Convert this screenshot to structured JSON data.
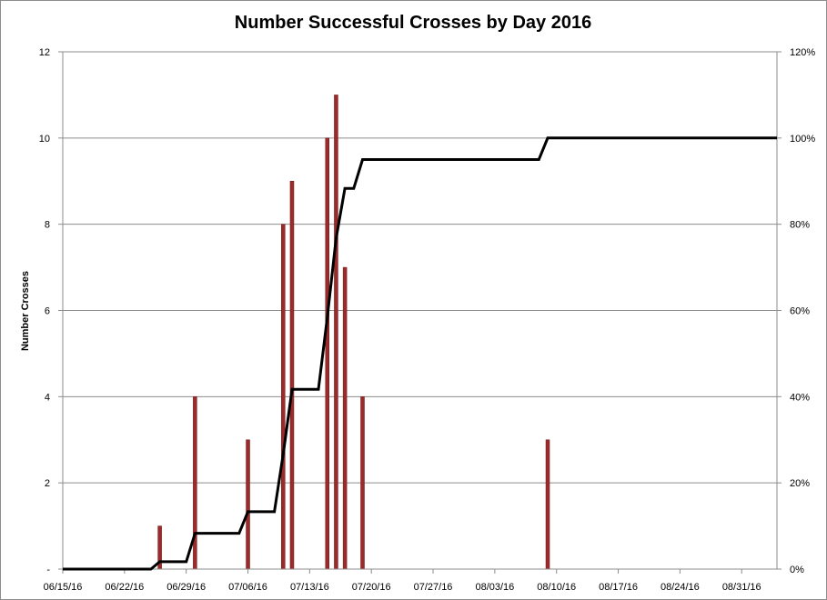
{
  "chart_data": {
    "type": "bar",
    "title": "Number Successful Crosses by Day 2016",
    "xlabel": "",
    "ylabel": "Number Crosses",
    "y2label": "",
    "ylim": [
      0,
      12
    ],
    "y2lim": [
      0,
      1.2
    ],
    "xlim": [
      "2016-06-15",
      "2016-09-04"
    ],
    "grid": true,
    "legend": "none",
    "y_ticks": [
      "-",
      "2",
      "4",
      "6",
      "8",
      "10",
      "12"
    ],
    "y_tick_values": [
      0,
      2,
      4,
      6,
      8,
      10,
      12
    ],
    "y2_ticks": [
      "0%",
      "20%",
      "40%",
      "60%",
      "80%",
      "100%",
      "120%"
    ],
    "y2_tick_values": [
      0,
      0.2,
      0.4,
      0.6,
      0.8,
      1.0,
      1.2
    ],
    "x_ticks": [
      "06/15/16",
      "06/22/16",
      "06/29/16",
      "07/06/16",
      "07/13/16",
      "07/20/16",
      "07/27/16",
      "08/03/16",
      "08/10/16",
      "08/17/16",
      "08/24/16",
      "08/31/16"
    ],
    "x_tick_values": [
      "2016-06-15",
      "2016-06-22",
      "2016-06-29",
      "2016-07-06",
      "2016-07-13",
      "2016-07-20",
      "2016-07-27",
      "2016-08-03",
      "2016-08-10",
      "2016-08-17",
      "2016-08-24",
      "2016-08-31"
    ],
    "series": [
      {
        "type": "bar",
        "axis": "left",
        "color": "#9b2a2a",
        "x": [
          "2016-06-26",
          "2016-06-30",
          "2016-07-06",
          "2016-07-10",
          "2016-07-11",
          "2016-07-15",
          "2016-07-16",
          "2016-07-17",
          "2016-07-19",
          "2016-08-09"
        ],
        "values": [
          1,
          4,
          3,
          8,
          9,
          10,
          11,
          7,
          4,
          3
        ]
      },
      {
        "type": "line",
        "axis": "right",
        "color": "#000000",
        "x": [
          "2016-06-15",
          "2016-06-25",
          "2016-06-26",
          "2016-06-29",
          "2016-06-30",
          "2016-07-05",
          "2016-07-06",
          "2016-07-09",
          "2016-07-10",
          "2016-07-11",
          "2016-07-14",
          "2016-07-15",
          "2016-07-16",
          "2016-07-17",
          "2016-07-18",
          "2016-07-19",
          "2016-08-08",
          "2016-08-09",
          "2016-09-04"
        ],
        "values": [
          0,
          0,
          0.017,
          0.017,
          0.083,
          0.083,
          0.133,
          0.133,
          0.267,
          0.417,
          0.417,
          0.583,
          0.767,
          0.883,
          0.883,
          0.95,
          0.95,
          1.0,
          1.0
        ]
      }
    ]
  }
}
